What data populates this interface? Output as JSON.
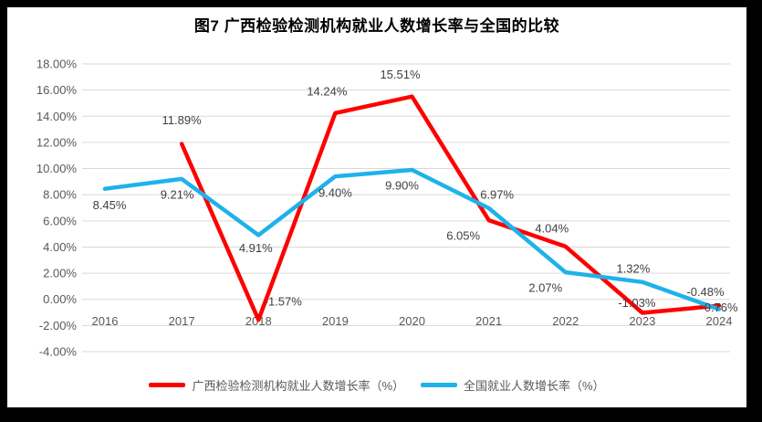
{
  "title": "图7 广西检验检测机构就业人数增长率与全国的比较",
  "chart_data": {
    "type": "line",
    "title": "图7 广西检验检测机构就业人数增长率与全国的比较",
    "categories": [
      "2016",
      "2017",
      "2018",
      "2019",
      "2020",
      "2021",
      "2022",
      "2023",
      "2024"
    ],
    "series": [
      {
        "name": "广西检验检测机构就业人数增长率（%）",
        "color": "#FF0000",
        "values": [
          null,
          11.89,
          -1.57,
          14.24,
          15.51,
          6.05,
          4.04,
          -1.03,
          -0.48
        ],
        "labels": [
          null,
          "11.89%",
          "-1.57%",
          "14.24%",
          "15.51%",
          "6.05%",
          "4.04%",
          "-1.03%",
          "-0.48%"
        ]
      },
      {
        "name": "全国就业人数增长率（%）",
        "color": "#1FB2EA",
        "values": [
          8.45,
          9.21,
          4.91,
          9.4,
          9.9,
          6.97,
          2.07,
          1.32,
          -0.76
        ],
        "labels": [
          "8.45%",
          "9.21%",
          "4.91%",
          "9.40%",
          "9.90%",
          "6.97%",
          "2.07%",
          "1.32%",
          "-0.76%"
        ]
      }
    ],
    "ylim": [
      -4,
      18
    ],
    "ytick_step": 2,
    "ytick_labels": [
      "18.00%",
      "16.00%",
      "14.00%",
      "12.00%",
      "10.00%",
      "8.00%",
      "6.00%",
      "4.00%",
      "2.00%",
      "0.00%",
      "-2.00%",
      "-4.00%"
    ],
    "grid": true,
    "gridline_color": "#d9d9d9",
    "tick_color": "#595959",
    "data_label_color": "#3f3f3f",
    "legend_position": "bottom",
    "label_offsets": [
      [
        null,
        [
          0,
          -26
        ],
        [
          27,
          -20
        ],
        [
          -9,
          -24
        ],
        [
          -13,
          -24
        ],
        [
          -28,
          17
        ],
        [
          -15,
          -20
        ],
        [
          -6,
          -11
        ],
        [
          -15,
          -15
        ]
      ],
      [
        [
          5,
          18
        ],
        [
          -5,
          17
        ],
        [
          -3,
          14
        ],
        [
          0,
          18
        ],
        [
          -11,
          17
        ],
        [
          9,
          -15
        ],
        [
          -22,
          17
        ],
        [
          -10,
          -15
        ],
        [
          0,
          -2
        ]
      ]
    ]
  }
}
